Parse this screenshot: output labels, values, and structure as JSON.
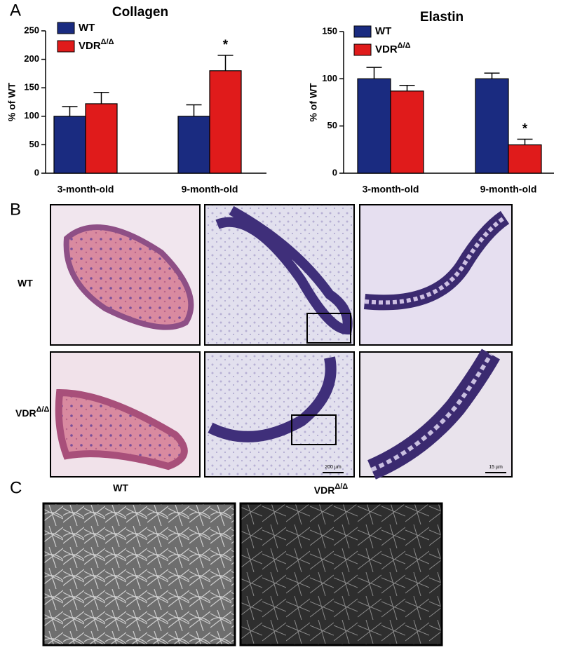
{
  "panels": {
    "a": "A",
    "b": "B",
    "c": "C"
  },
  "chart_data": [
    {
      "type": "bar",
      "title": "Collagen",
      "y_label": "% of WT",
      "categories": [
        "3-month-old",
        "9-month-old"
      ],
      "series": [
        {
          "name": "WT",
          "color": "#1a2b80",
          "values": [
            100,
            100
          ],
          "errors": [
            17,
            20
          ]
        },
        {
          "name": "VDR",
          "superscript": "Δ/Δ",
          "color": "#e01b1b",
          "values": [
            122,
            180
          ],
          "errors": [
            20,
            27
          ]
        }
      ],
      "annotation": "*",
      "ylim": [
        0,
        250
      ],
      "yticks": [
        0,
        50,
        100,
        150,
        200,
        250
      ]
    },
    {
      "type": "bar",
      "title": "Elastin",
      "y_label": "% of WT",
      "categories": [
        "3-month-old",
        "9-month-old"
      ],
      "series": [
        {
          "name": "WT",
          "color": "#1a2b80",
          "values": [
            100,
            100
          ],
          "errors": [
            12,
            6
          ]
        },
        {
          "name": "VDR",
          "superscript": "Δ/Δ",
          "color": "#e01b1b",
          "values": [
            87,
            30
          ],
          "errors": [
            6,
            6
          ]
        }
      ],
      "annotation": "*",
      "ylim": [
        0,
        150
      ],
      "yticks": [
        0,
        50,
        100,
        150
      ]
    }
  ],
  "histology": {
    "row_labels": [
      "WT",
      "VDR"
    ],
    "row_superscript": "Δ/Δ",
    "scale_bars": [
      "200 µm",
      "15 µm"
    ]
  },
  "sem": {
    "labels": [
      "WT",
      "VDR"
    ],
    "superscript": "Δ/Δ"
  }
}
